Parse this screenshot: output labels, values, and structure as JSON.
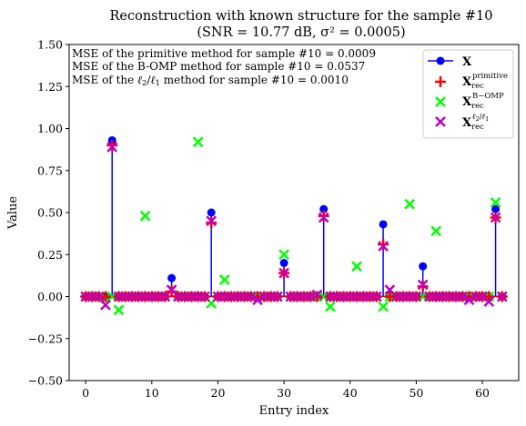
{
  "chart_data": {
    "type": "scatter",
    "title_line1": "Reconstruction with known structure for the sample #10",
    "title_line2": "(SNR = 10.77 dB, σ² = 0.0005)",
    "xlabel": "Entry index",
    "ylabel": "Value",
    "xlim": [
      -2.5,
      65.5
    ],
    "ylim": [
      -0.5,
      1.5
    ],
    "xticks": [
      0,
      10,
      20,
      30,
      40,
      50,
      60
    ],
    "yticks": [
      -0.5,
      -0.25,
      0.0,
      0.25,
      0.5,
      0.75,
      1.0,
      1.25,
      1.5
    ],
    "ytick_labels": [
      "−0.50",
      "−0.25",
      "0.00",
      "0.25",
      "0.50",
      "0.75",
      "1.00",
      "1.25",
      "1.50"
    ],
    "grid": false,
    "legend_position": "top-right",
    "annotations": [
      "MSE of the primitive method for sample #10 = 0.0009",
      "MSE of the B-OMP method for sample #10 = 0.0537",
      "MSE of the ℓ2/ℓ1 method for sample #10 = 0.0010"
    ],
    "legend": [
      {
        "label": "X",
        "color": "#0000ff",
        "marker": "stem-circle"
      },
      {
        "label": "X_rec^primitive",
        "color": "#ff0000",
        "marker": "plus"
      },
      {
        "label": "X_rec^B−OMP",
        "color": "#00ff00",
        "marker": "x"
      },
      {
        "label": "X_rec^ℓ2/ℓ1",
        "color": "#bf00bf",
        "marker": "x"
      }
    ],
    "n_entries": 64,
    "series": [
      {
        "name": "X",
        "color": "#0000ff",
        "nonzero": [
          [
            4,
            0.93
          ],
          [
            13,
            0.11
          ],
          [
            19,
            0.5
          ],
          [
            30,
            0.2
          ],
          [
            36,
            0.52
          ],
          [
            45,
            0.43
          ],
          [
            51,
            0.18
          ],
          [
            62,
            0.52
          ]
        ]
      },
      {
        "name": "X_rec^primitive",
        "color": "#ff0000",
        "nonzero": [
          [
            4,
            0.9
          ],
          [
            13,
            0.03
          ],
          [
            19,
            0.44
          ],
          [
            30,
            0.14
          ],
          [
            36,
            0.48
          ],
          [
            45,
            0.31
          ],
          [
            51,
            0.06
          ],
          [
            62,
            0.47
          ]
        ]
      },
      {
        "name": "X_rec^B-OMP",
        "color": "#00ff00",
        "nonzero": [
          [
            3,
            -0.01
          ],
          [
            5,
            -0.08
          ],
          [
            9,
            0.48
          ],
          [
            13,
            0.04
          ],
          [
            17,
            0.92
          ],
          [
            19,
            -0.04
          ],
          [
            21,
            0.1
          ],
          [
            30,
            0.25
          ],
          [
            37,
            -0.06
          ],
          [
            41,
            0.18
          ],
          [
            45,
            -0.06
          ],
          [
            49,
            0.55
          ],
          [
            53,
            0.39
          ],
          [
            62,
            0.56
          ]
        ]
      },
      {
        "name": "X_rec^l2/l1",
        "color": "#bf00bf",
        "nonzero": [
          [
            3,
            -0.05
          ],
          [
            4,
            0.89
          ],
          [
            13,
            0.04
          ],
          [
            19,
            0.45
          ],
          [
            26,
            -0.02
          ],
          [
            30,
            0.14
          ],
          [
            35,
            0.01
          ],
          [
            36,
            0.47
          ],
          [
            45,
            0.3
          ],
          [
            46,
            0.04
          ],
          [
            51,
            0.07
          ],
          [
            58,
            -0.02
          ],
          [
            61,
            -0.03
          ],
          [
            62,
            0.47
          ]
        ]
      }
    ]
  }
}
